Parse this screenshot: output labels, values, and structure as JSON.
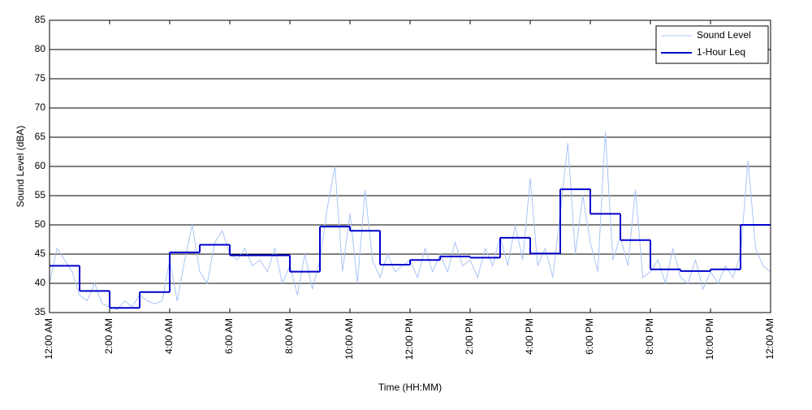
{
  "chart_data": {
    "type": "line",
    "xlabel": "Time (HH:MM)",
    "ylabel": "Sound Level (dBA)",
    "xlim": [
      0,
      24
    ],
    "xticks": [
      {
        "value": 0,
        "label": "12:00 AM"
      },
      {
        "value": 2,
        "label": "2:00 AM"
      },
      {
        "value": 4,
        "label": "4:00 AM"
      },
      {
        "value": 6,
        "label": "6:00 AM"
      },
      {
        "value": 8,
        "label": "8:00 AM"
      },
      {
        "value": 10,
        "label": "10:00 AM"
      },
      {
        "value": 12,
        "label": "12:00 PM"
      },
      {
        "value": 14,
        "label": "2:00 PM"
      },
      {
        "value": 16,
        "label": "4:00 PM"
      },
      {
        "value": 18,
        "label": "6:00 PM"
      },
      {
        "value": 20,
        "label": "8:00 PM"
      },
      {
        "value": 22,
        "label": "10:00 PM"
      },
      {
        "value": 24,
        "label": "12:00 AM"
      }
    ],
    "ylim": [
      35,
      85
    ],
    "yticks": [
      35,
      40,
      45,
      50,
      55,
      60,
      65,
      70,
      75,
      80,
      85
    ],
    "grid": true,
    "legend": "upper right",
    "series": [
      {
        "name": "Sound Level",
        "color": "#a9c4f5",
        "step": false,
        "x": [
          0,
          0.25,
          0.5,
          0.75,
          1,
          1.25,
          1.5,
          1.75,
          2,
          2.25,
          2.5,
          2.75,
          3,
          3.25,
          3.5,
          3.75,
          4,
          4.25,
          4.5,
          4.75,
          5,
          5.25,
          5.5,
          5.75,
          6,
          6.25,
          6.5,
          6.75,
          7,
          7.25,
          7.5,
          7.75,
          8,
          8.25,
          8.5,
          8.75,
          9,
          9.25,
          9.5,
          9.75,
          10,
          10.25,
          10.5,
          10.75,
          11,
          11.25,
          11.5,
          11.75,
          12,
          12.25,
          12.5,
          12.75,
          13,
          13.25,
          13.5,
          13.75,
          14,
          14.25,
          14.5,
          14.75,
          15,
          15.25,
          15.5,
          15.75,
          16,
          16.25,
          16.5,
          16.75,
          17,
          17.25,
          17.5,
          17.75,
          18,
          18.25,
          18.5,
          18.75,
          19,
          19.25,
          19.5,
          19.75,
          20,
          20.25,
          20.5,
          20.75,
          21,
          21.25,
          21.5,
          21.75,
          22,
          22.25,
          22.5,
          22.75,
          23,
          23.25,
          23.5,
          23.75,
          24
        ],
        "values": [
          40,
          46,
          44,
          42,
          38,
          37,
          40,
          36.5,
          36,
          35.5,
          37,
          36,
          38,
          37,
          36.5,
          37,
          44,
          37,
          44,
          50,
          42,
          40,
          47,
          49,
          45,
          44,
          46,
          43,
          44,
          42,
          46,
          40,
          43,
          38,
          45,
          39,
          44,
          53,
          60,
          42,
          52,
          40,
          56,
          44,
          41,
          45,
          42,
          43,
          44,
          41,
          46,
          42,
          45,
          42,
          47,
          43,
          44,
          41,
          46,
          43,
          48,
          43,
          50,
          44,
          58,
          43,
          46,
          41,
          52,
          64,
          45,
          55,
          47,
          42,
          66,
          44,
          48,
          43,
          56,
          41,
          42,
          44,
          40,
          46,
          41,
          40,
          44,
          39,
          42,
          40,
          43,
          41,
          45,
          61,
          46,
          43,
          42
        ]
      },
      {
        "name": "1-Hour Leq",
        "color": "#0000cc",
        "step": true,
        "x": [
          0,
          1,
          2,
          3,
          4,
          5,
          6,
          7,
          8,
          9,
          10,
          11,
          12,
          13,
          14,
          15,
          16,
          17,
          18,
          19,
          20,
          21,
          22,
          23
        ],
        "values": [
          43,
          38.7,
          35.8,
          38.5,
          45.3,
          46.6,
          44.8,
          44.8,
          42,
          49.7,
          49,
          43.2,
          44,
          44.6,
          44.4,
          47.8,
          45.1,
          56.1,
          51.9,
          47.4,
          42.4,
          42.1,
          42.4,
          50
        ]
      }
    ]
  }
}
